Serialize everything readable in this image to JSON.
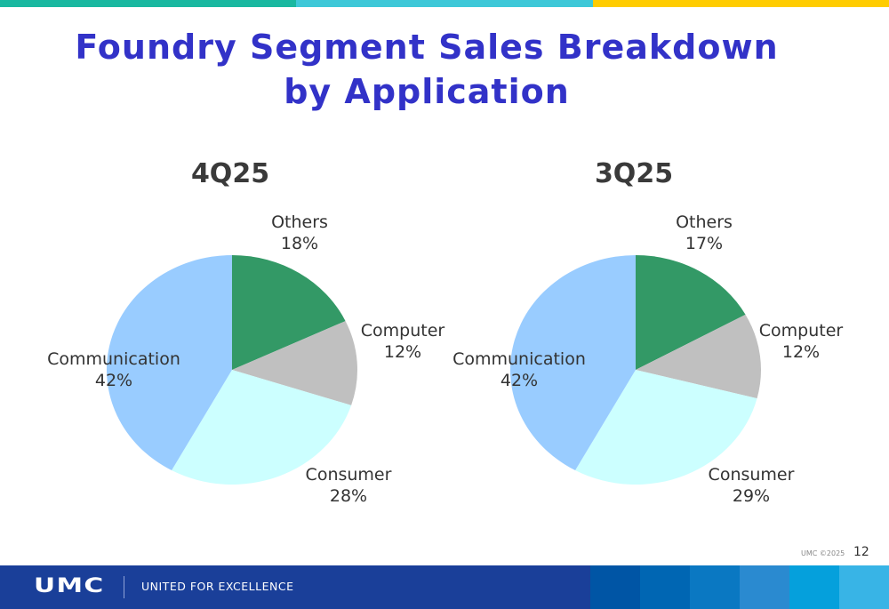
{
  "slide": {
    "title_line1": "Foundry Segment Sales Breakdown",
    "title_line2": "by Application",
    "copyright": "UMC ©2025",
    "page_number": "12"
  },
  "footer": {
    "logo": "UMC",
    "tagline": "UNITED FOR EXCELLENCE"
  },
  "colors": {
    "Others": "#339966",
    "Computer": "#c0c0c0",
    "Consumer": "#ccffff",
    "Communication": "#99ccff"
  },
  "chart_data": [
    {
      "type": "pie",
      "title": "4Q25",
      "slices": [
        {
          "label": "Others",
          "value": 18
        },
        {
          "label": "Computer",
          "value": 12
        },
        {
          "label": "Consumer",
          "value": 28
        },
        {
          "label": "Communication",
          "value": 42
        }
      ],
      "unit": "%"
    },
    {
      "type": "pie",
      "title": "3Q25",
      "slices": [
        {
          "label": "Others",
          "value": 17
        },
        {
          "label": "Computer",
          "value": 12
        },
        {
          "label": "Consumer",
          "value": 29
        },
        {
          "label": "Communication",
          "value": 42
        }
      ],
      "unit": "%"
    }
  ]
}
